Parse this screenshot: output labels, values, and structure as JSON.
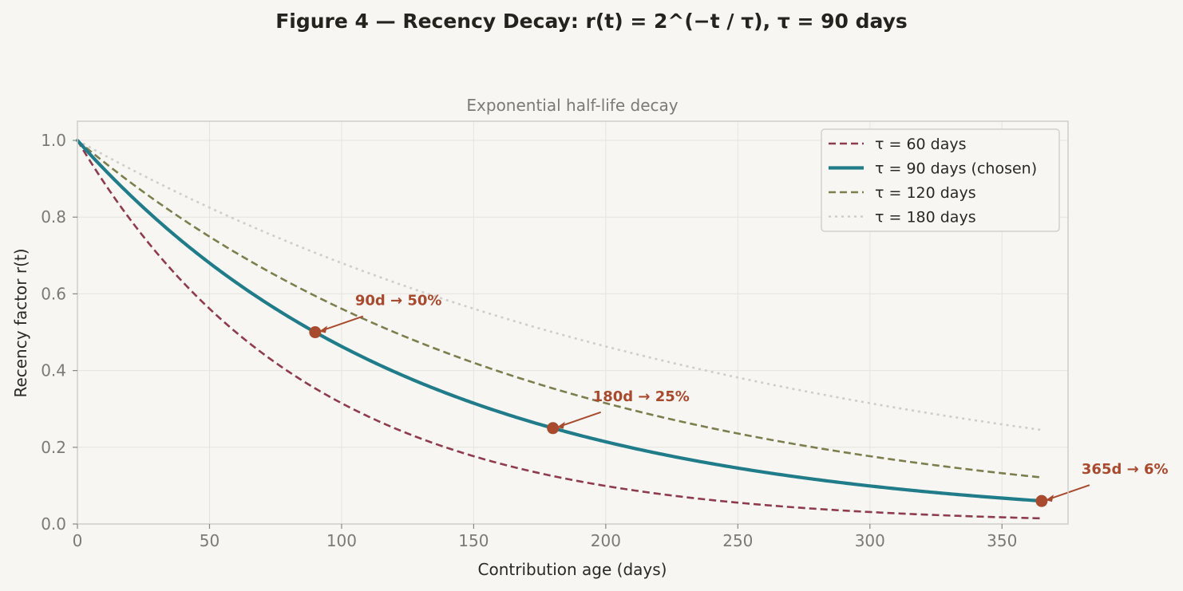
{
  "figure": {
    "title": "Figure 4 — Recency Decay: r(t) = 2^(−t / τ), τ = 90 days",
    "background": "#f7f6f2"
  },
  "chart_data": {
    "type": "line",
    "title": "Exponential half-life decay",
    "xlabel": "Contribution age (days)",
    "ylabel": "Recency factor r(t)",
    "xlim": [
      0,
      375
    ],
    "ylim": [
      0,
      1.05
    ],
    "xticks": [
      0,
      50,
      100,
      150,
      200,
      250,
      300,
      350
    ],
    "yticks": [
      0.0,
      0.2,
      0.4,
      0.6,
      0.8,
      1.0
    ],
    "xtick_labels": [
      "0",
      "50",
      "100",
      "150",
      "200",
      "250",
      "300",
      "350"
    ],
    "ytick_labels": [
      "0.0",
      "0.2",
      "0.4",
      "0.6",
      "0.8",
      "1.0"
    ],
    "x_range": [
      0,
      365
    ],
    "grid": true,
    "legend_position": "top-right",
    "formula": "2^(-t/tau)",
    "series": [
      {
        "name": "τ = 60 days",
        "tau": 60,
        "color": "#8e3b4d",
        "style": "dashed",
        "width": "normal"
      },
      {
        "name": "τ = 90 days (chosen)",
        "tau": 90,
        "color": "#217c8a",
        "style": "solid",
        "width": "thick"
      },
      {
        "name": "τ = 120 days",
        "tau": 120,
        "color": "#7d7e4e",
        "style": "dashed",
        "width": "normal"
      },
      {
        "name": "τ = 180 days",
        "tau": 180,
        "color": "#cfcdc7",
        "style": "dotted",
        "width": "normal"
      }
    ],
    "annotations": [
      {
        "x": 90,
        "y": 0.5,
        "label": "90d → 50%",
        "color": "#a84a2e"
      },
      {
        "x": 180,
        "y": 0.25,
        "label": "180d → 25%",
        "color": "#a84a2e"
      },
      {
        "x": 365,
        "y": 0.06,
        "label": "365d → 6%",
        "color": "#a84a2e"
      }
    ]
  }
}
